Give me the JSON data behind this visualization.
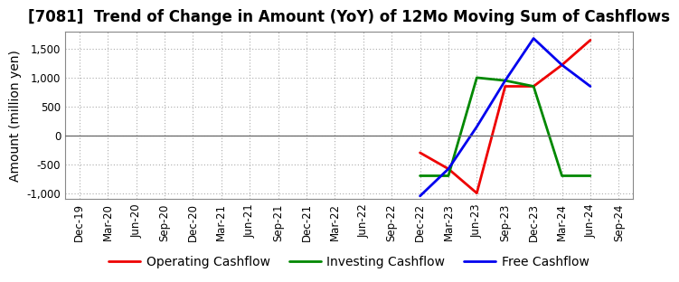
{
  "title": "[7081]  Trend of Change in Amount (YoY) of 12Mo Moving Sum of Cashflows",
  "ylabel": "Amount (million yen)",
  "background_color": "#ffffff",
  "plot_bg_color": "#ffffff",
  "grid_color": "#aaaaaa",
  "ylim": [
    -1100,
    1800
  ],
  "yticks": [
    -1000,
    -500,
    0,
    500,
    1000,
    1500
  ],
  "x_labels": [
    "Dec-19",
    "Mar-20",
    "Jun-20",
    "Sep-20",
    "Dec-20",
    "Mar-21",
    "Jun-21",
    "Sep-21",
    "Dec-21",
    "Mar-22",
    "Jun-22",
    "Sep-22",
    "Dec-22",
    "Mar-23",
    "Jun-23",
    "Sep-23",
    "Dec-23",
    "Mar-24",
    "Jun-24",
    "Sep-24"
  ],
  "operating": {
    "label": "Operating Cashflow",
    "color": "#ee0000",
    "x_indices": [
      12,
      13,
      14,
      15,
      16,
      17,
      18
    ],
    "values": [
      -300,
      -580,
      -1000,
      850,
      850,
      1220,
      1650
    ]
  },
  "investing": {
    "label": "Investing Cashflow",
    "color": "#008800",
    "x_indices": [
      12,
      13,
      14,
      15,
      16,
      17,
      18
    ],
    "values": [
      -700,
      -700,
      1000,
      950,
      850,
      -700,
      -700
    ]
  },
  "free": {
    "label": "Free Cashflow",
    "color": "#0000ee",
    "x_indices": [
      12,
      13,
      14,
      15,
      16,
      17,
      18
    ],
    "values": [
      -1050,
      -580,
      150,
      950,
      1680,
      1220,
      850
    ]
  },
  "title_fontsize": 12,
  "label_fontsize": 10,
  "tick_fontsize": 8.5
}
